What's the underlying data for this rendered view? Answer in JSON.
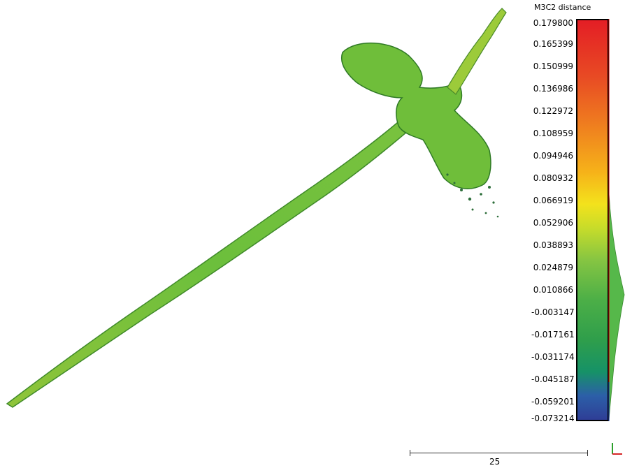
{
  "colorscale": {
    "title": "M3C2 distance",
    "ticks": [
      "0.179800",
      "0.165399",
      "0.150999",
      "0.136986",
      "0.122972",
      "0.108959",
      "0.094946",
      "0.080932",
      "0.066919",
      "0.052906",
      "0.038893",
      "0.024879",
      "0.010866",
      "-0.003147",
      "-0.017161",
      "-0.031174",
      "-0.045187",
      "-0.059201",
      "-0.073214"
    ],
    "colors": {
      "max": "#e41e25",
      "mid": "#f3e21c",
      "low": "#4caf47",
      "min": "#2e3e96"
    }
  },
  "scalebar": {
    "label": "25"
  },
  "histogram": {
    "color": "#56b84a"
  }
}
